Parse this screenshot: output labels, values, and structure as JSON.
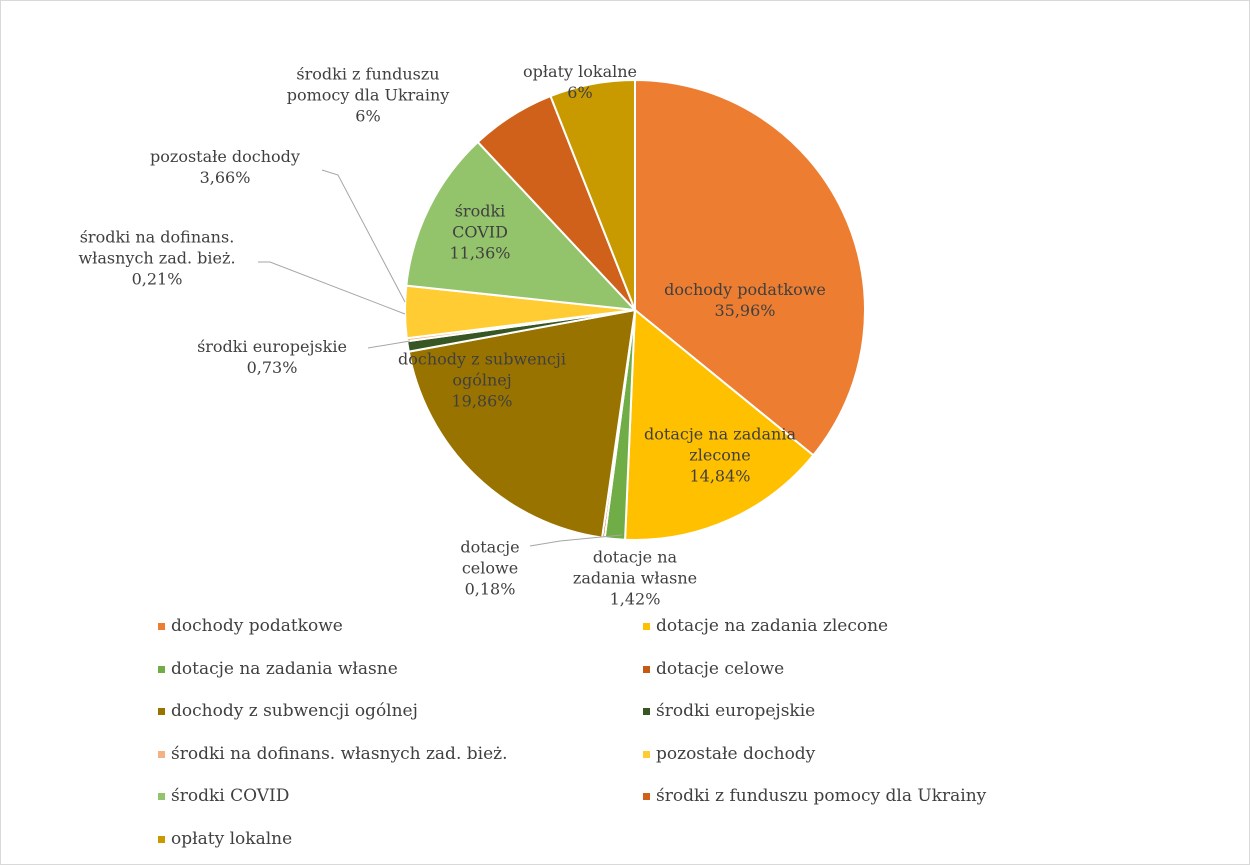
{
  "chart_data": {
    "type": "pie",
    "categories": [
      "dochody podatkowe",
      "dotacje na zadania zlecone",
      "dotacje na zadania własne",
      "dotacje celowe",
      "dochody z subwencji ogólnej",
      "środki europejskie",
      "środki na dofinans. własnych zad. bież.",
      "pozostałe dochody",
      "środki COVID",
      "środki z funduszu pomocy dla Ukrainy",
      "opłaty lokalne"
    ],
    "values": [
      35.96,
      14.84,
      1.42,
      0.18,
      19.86,
      0.73,
      0.21,
      3.66,
      11.36,
      6,
      6
    ],
    "value_labels": [
      "35,96%",
      "14,84%",
      "1,42%",
      "0,18%",
      "19,86%",
      "0,73%",
      "0,21%",
      "3,66%",
      "11,36%",
      "6%",
      "6%"
    ],
    "colors": [
      "#ED7D31",
      "#FFC000",
      "#70AD47",
      "#C55A11",
      "#997300",
      "#375623",
      "#F4B183",
      "#FFCD33",
      "#93C36B",
      "#D0611A",
      "#C99A00"
    ],
    "legend": "bottom"
  }
}
